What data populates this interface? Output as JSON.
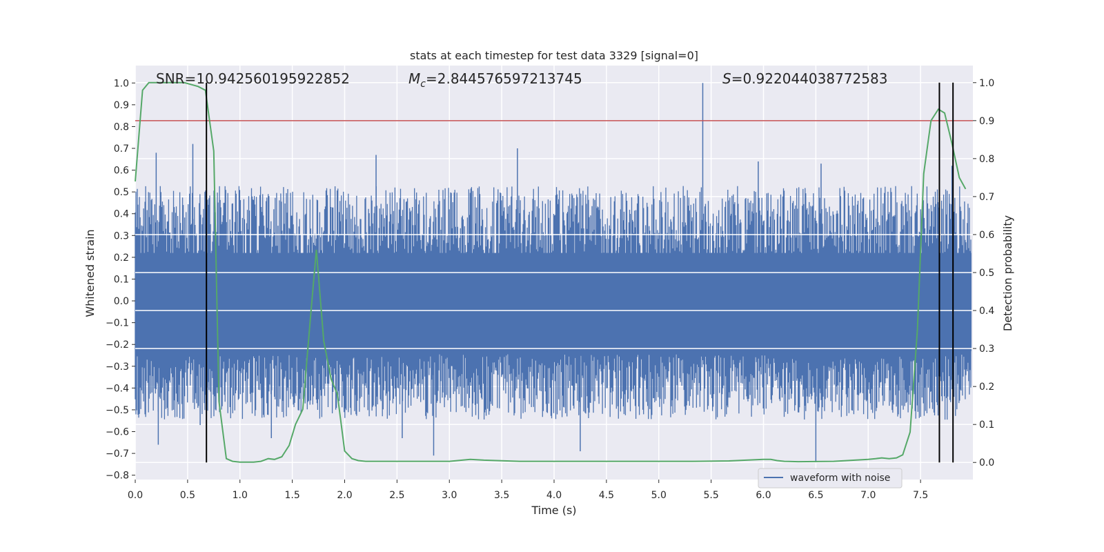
{
  "chart_data": {
    "type": "line",
    "title": "stats at each timestep for test data 3329 [signal=0]",
    "xlabel": "Time (s)",
    "ylabel": "Whitened strain",
    "y2label": "Detection probability",
    "xlim": [
      0.0,
      8.0
    ],
    "ylim": [
      -0.82,
      1.08
    ],
    "y2lim": [
      -0.045,
      1.045
    ],
    "xticks": [
      "0.0",
      "0.5",
      "1.0",
      "1.5",
      "2.0",
      "2.5",
      "3.0",
      "3.5",
      "4.0",
      "4.5",
      "5.0",
      "5.5",
      "6.0",
      "6.5",
      "7.0",
      "7.5"
    ],
    "yticks": [
      "1.0",
      "0.9",
      "0.8",
      "0.7",
      "0.6",
      "0.5",
      "0.4",
      "0.3",
      "0.2",
      "0.1",
      "0.0",
      "−0.1",
      "−0.2",
      "−0.3",
      "−0.4",
      "−0.5",
      "−0.6",
      "−0.7",
      "−0.8"
    ],
    "y2ticks": [
      "1.0",
      "0.9",
      "0.8",
      "0.7",
      "0.6",
      "0.5",
      "0.4",
      "0.3",
      "0.2",
      "0.1",
      "0.0"
    ],
    "grid": true,
    "legend_position": "lower right",
    "legend": [
      {
        "label": "waveform with noise",
        "color": "#4c72b0"
      }
    ],
    "annotations": [
      {
        "prefix": "SNR=",
        "value": "10.942560195922852"
      },
      {
        "prefix": "M",
        "subscript": "c",
        "suffix": "=",
        "value": "2.844576597213745"
      },
      {
        "prefix": "S",
        "suffix": "=",
        "value": "0.922044038772583"
      }
    ],
    "waveform": {
      "color": "#4c72b0",
      "band_top_typical": 0.3,
      "band_bottom_typical": -0.35,
      "spikes": [
        {
          "x": 0.2,
          "y": 0.68
        },
        {
          "x": 0.22,
          "y": -0.66
        },
        {
          "x": 0.55,
          "y": 0.72
        },
        {
          "x": 0.62,
          "y": -0.57
        },
        {
          "x": 1.3,
          "y": -0.63
        },
        {
          "x": 2.3,
          "y": 0.67
        },
        {
          "x": 2.55,
          "y": -0.63
        },
        {
          "x": 2.85,
          "y": -0.71
        },
        {
          "x": 3.65,
          "y": 0.7
        },
        {
          "x": 4.25,
          "y": -0.69
        },
        {
          "x": 5.42,
          "y": 1.0
        },
        {
          "x": 5.95,
          "y": 0.64
        },
        {
          "x": 6.5,
          "y": -0.74
        },
        {
          "x": 6.55,
          "y": 0.63
        },
        {
          "x": 7.8,
          "y": 0.62
        }
      ]
    },
    "detection_probability": {
      "color": "#55a868",
      "x": [
        0.0,
        0.07,
        0.13,
        0.2,
        0.33,
        0.47,
        0.6,
        0.67,
        0.7,
        0.75,
        0.8,
        0.87,
        0.93,
        1.0,
        1.07,
        1.13,
        1.2,
        1.27,
        1.33,
        1.4,
        1.47,
        1.53,
        1.6,
        1.67,
        1.73,
        1.8,
        1.87,
        1.93,
        2.0,
        2.07,
        2.13,
        2.2,
        2.33,
        2.67,
        3.0,
        3.2,
        3.33,
        3.67,
        4.0,
        4.33,
        4.67,
        5.0,
        5.33,
        5.67,
        6.0,
        6.07,
        6.13,
        6.2,
        6.33,
        6.67,
        7.0,
        7.07,
        7.13,
        7.2,
        7.27,
        7.33,
        7.4,
        7.47,
        7.53,
        7.6,
        7.67,
        7.73,
        7.8,
        7.87,
        7.93
      ],
      "y": [
        0.74,
        0.98,
        1.0,
        1.0,
        1.0,
        1.0,
        0.99,
        0.98,
        0.92,
        0.82,
        0.16,
        0.01,
        0.003,
        0.001,
        0.001,
        0.001,
        0.003,
        0.01,
        0.008,
        0.015,
        0.045,
        0.1,
        0.14,
        0.37,
        0.56,
        0.32,
        0.22,
        0.18,
        0.03,
        0.01,
        0.005,
        0.003,
        0.003,
        0.003,
        0.003,
        0.008,
        0.006,
        0.003,
        0.003,
        0.003,
        0.003,
        0.003,
        0.003,
        0.004,
        0.008,
        0.008,
        0.005,
        0.003,
        0.002,
        0.003,
        0.008,
        0.01,
        0.012,
        0.01,
        0.012,
        0.02,
        0.08,
        0.35,
        0.76,
        0.9,
        0.93,
        0.92,
        0.84,
        0.75,
        0.72
      ]
    },
    "threshold": {
      "y2": 0.9,
      "color": "#c44e52"
    },
    "vlines": {
      "x": [
        0.68,
        7.68,
        7.81
      ],
      "color": "#000000",
      "y2_range": [
        0.0,
        1.0
      ]
    }
  }
}
